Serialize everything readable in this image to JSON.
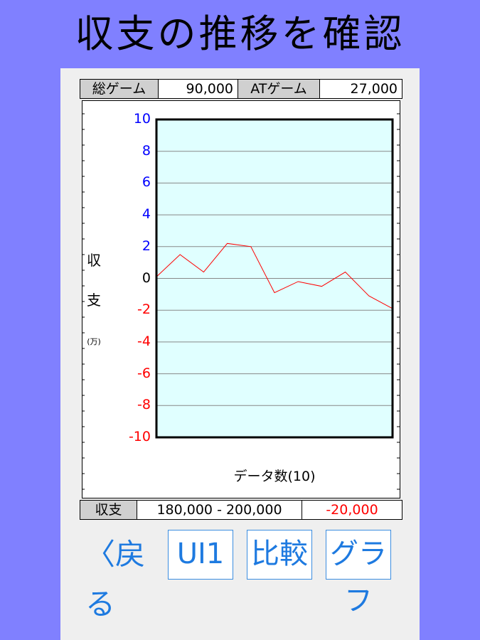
{
  "title": "収支の推移を確認",
  "stats": {
    "total_games_label": "総ゲーム",
    "total_games_value": "90,000",
    "at_games_label": "ATゲーム",
    "at_games_value": "27,000"
  },
  "balance": {
    "label": "収支",
    "range": "180,000 - 200,000",
    "value": "-20,000",
    "value_color": "#ff0000"
  },
  "axis": {
    "y_label_chars": [
      "収",
      "支"
    ],
    "y_unit": "(万)",
    "x_label": "データ数(10)",
    "positive_color": "#0000ff",
    "negative_color": "#ff0000"
  },
  "buttons": {
    "back": "〈戻る",
    "ui1": "UI1",
    "compare": "比較",
    "graph": "グラフ"
  },
  "chart_data": {
    "type": "line",
    "x": [
      0,
      1,
      2,
      3,
      4,
      5,
      6,
      7,
      8,
      9,
      10
    ],
    "series": [
      {
        "values": [
          0.1,
          1.5,
          0.4,
          2.2,
          2.0,
          -0.9,
          -0.2,
          -0.5,
          0.4,
          -1.1,
          -1.9
        ],
        "color": "#ff0000"
      }
    ],
    "yticks": [
      10,
      8,
      6,
      4,
      2,
      0,
      -2,
      -4,
      -6,
      -8,
      -10
    ],
    "ylim": [
      -10,
      10
    ],
    "xlim": [
      0,
      10
    ],
    "plot_background": "#e0ffff",
    "grid": true,
    "xlabel": "データ数(10)",
    "ylabel": "収支 (万)"
  }
}
